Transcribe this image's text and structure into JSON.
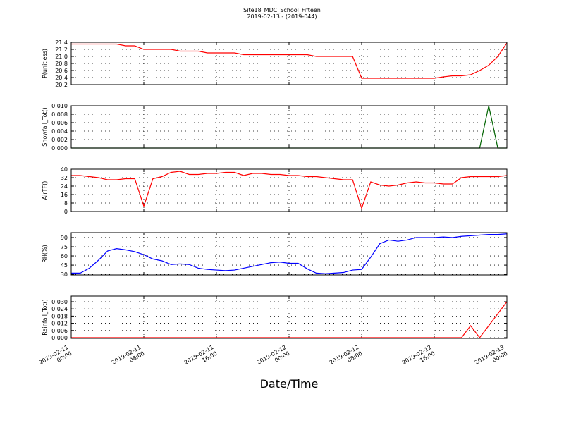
{
  "chart_data": {
    "title": "Site18_MDC_School_Fifteen",
    "subtitle": "2019-02-13 - (2019-044)",
    "x_label": "Date/Time",
    "xlim": [
      "2019-02-11 00:00",
      "2019-02-13 00:00"
    ],
    "xticks": [
      "2019-02-11 00:00",
      "2019-02-11 08:00",
      "2019-02-11 16:00",
      "2019-02-12 00:00",
      "2019-02-12 08:00",
      "2019-02-12 16:00",
      "2019-02-13 00:00"
    ],
    "grid": true,
    "x": [
      "2019-02-11 00:00",
      "2019-02-11 01:00",
      "2019-02-11 02:00",
      "2019-02-11 03:00",
      "2019-02-11 04:00",
      "2019-02-11 05:00",
      "2019-02-11 06:00",
      "2019-02-11 07:00",
      "2019-02-11 08:00",
      "2019-02-11 09:00",
      "2019-02-11 10:00",
      "2019-02-11 11:00",
      "2019-02-11 12:00",
      "2019-02-11 13:00",
      "2019-02-11 14:00",
      "2019-02-11 15:00",
      "2019-02-11 16:00",
      "2019-02-11 17:00",
      "2019-02-11 18:00",
      "2019-02-11 19:00",
      "2019-02-11 20:00",
      "2019-02-11 21:00",
      "2019-02-11 22:00",
      "2019-02-11 23:00",
      "2019-02-12 00:00",
      "2019-02-12 01:00",
      "2019-02-12 02:00",
      "2019-02-12 03:00",
      "2019-02-12 04:00",
      "2019-02-12 05:00",
      "2019-02-12 06:00",
      "2019-02-12 07:00",
      "2019-02-12 08:00",
      "2019-02-12 09:00",
      "2019-02-12 10:00",
      "2019-02-12 11:00",
      "2019-02-12 12:00",
      "2019-02-12 13:00",
      "2019-02-12 14:00",
      "2019-02-12 15:00",
      "2019-02-12 16:00",
      "2019-02-12 17:00",
      "2019-02-12 18:00",
      "2019-02-12 19:00",
      "2019-02-12 20:00",
      "2019-02-12 21:00",
      "2019-02-12 22:00",
      "2019-02-12 23:00",
      "2019-02-13 00:00"
    ],
    "panels": [
      {
        "type": "line",
        "y_label": "P(unitless)",
        "ylim": [
          20.2,
          21.4
        ],
        "yticks": [
          20.2,
          20.4,
          20.6,
          20.8,
          {
            "value": 21.0,
            "label": "21.0"
          },
          21.2,
          21.4
        ],
        "series": [
          {
            "color": "#ff0000",
            "values": [
              21.35,
              21.35,
              21.35,
              21.35,
              21.35,
              21.35,
              21.3,
              21.3,
              21.2,
              21.2,
              21.2,
              21.2,
              21.15,
              21.15,
              21.15,
              21.1,
              21.1,
              21.1,
              21.1,
              21.05,
              21.05,
              21.05,
              21.05,
              21.05,
              21.05,
              21.05,
              21.05,
              21.0,
              21.0,
              21.0,
              21.0,
              21.0,
              20.38,
              20.38,
              20.38,
              20.38,
              20.38,
              20.38,
              20.38,
              20.38,
              20.38,
              20.42,
              20.45,
              20.45,
              20.48,
              20.6,
              20.75,
              21.0,
              21.38
            ]
          }
        ]
      },
      {
        "type": "line",
        "y_label": "Snowfall_Tot()",
        "ylim": [
          0,
          0.01
        ],
        "yticks": [
          {
            "value": 0,
            "label": "0.000"
          },
          {
            "value": 0.002,
            "label": "0.002"
          },
          {
            "value": 0.004,
            "label": "0.004"
          },
          {
            "value": 0.006,
            "label": "0.006"
          },
          {
            "value": 0.008,
            "label": "0.008"
          },
          {
            "value": 0.01,
            "label": "0.010"
          }
        ],
        "series": [
          {
            "color": "#006400",
            "values": [
              0,
              0,
              0,
              0,
              0,
              0,
              0,
              0,
              0,
              0,
              0,
              0,
              0,
              0,
              0,
              0,
              0,
              0,
              0,
              0,
              0,
              0,
              0,
              0,
              0,
              0,
              0,
              0,
              0,
              0,
              0,
              0,
              0,
              0,
              0,
              0,
              0,
              0,
              0,
              0,
              0,
              0,
              0,
              0,
              0,
              0,
              0.01,
              0,
              0
            ]
          }
        ]
      },
      {
        "type": "line",
        "y_label": "AirTF()",
        "ylim": [
          0,
          40
        ],
        "yticks": [
          0,
          8,
          16,
          24,
          32,
          40
        ],
        "series": [
          {
            "color": "#ff0000",
            "values": [
              34,
              34,
              33,
              32,
              30,
              30,
              31,
              31,
              5,
              31,
              33,
              37,
              38,
              35,
              35,
              36,
              36,
              37,
              37,
              34,
              36,
              36,
              35,
              35,
              34,
              34,
              33,
              33,
              32,
              31,
              30,
              30,
              3,
              28,
              25,
              24,
              25,
              27,
              28,
              27,
              27,
              26,
              26,
              32,
              33,
              33,
              33,
              33,
              34
            ]
          }
        ]
      },
      {
        "type": "line",
        "y_label": "RH(%)",
        "ylim": [
          29,
          98
        ],
        "yticks": [
          30,
          45,
          60,
          75,
          90
        ],
        "series": [
          {
            "color": "#0000ff",
            "values": [
              32,
              32,
              40,
              53,
              68,
              72,
              70,
              67,
              62,
              55,
              52,
              46,
              47,
              46,
              40,
              38,
              37,
              36,
              37,
              40,
              43,
              46,
              49,
              50,
              48,
              48,
              39,
              32,
              31,
              32,
              33,
              37,
              38,
              58,
              80,
              86,
              84,
              86,
              90,
              90,
              90,
              91,
              90,
              92,
              93,
              94,
              95,
              95,
              96
            ]
          }
        ]
      },
      {
        "type": "line",
        "y_label": "Rainfall_Tot()",
        "ylim": [
          -0.0006,
          0.0347
        ],
        "yticks": [
          {
            "value": 0,
            "label": "0.000"
          },
          {
            "value": 0.006,
            "label": "0.006"
          },
          {
            "value": 0.012,
            "label": "0.012"
          },
          {
            "value": 0.018,
            "label": "0.018"
          },
          {
            "value": 0.024,
            "label": "0.024"
          },
          {
            "value": 0.03,
            "label": "0.030"
          }
        ],
        "series": [
          {
            "color": "#ff0000",
            "values": [
              0,
              0,
              0,
              0,
              0,
              0,
              0,
              0,
              0,
              0,
              0,
              0,
              0,
              0,
              0,
              0,
              0,
              0,
              0,
              0,
              0,
              0,
              0,
              0,
              0,
              0,
              0,
              0,
              0,
              0,
              0,
              0,
              0,
              0,
              0,
              0,
              0,
              0,
              0,
              0,
              0,
              0,
              0,
              0,
              0.01,
              0,
              0.01,
              0.02,
              0.03
            ]
          }
        ]
      }
    ]
  }
}
